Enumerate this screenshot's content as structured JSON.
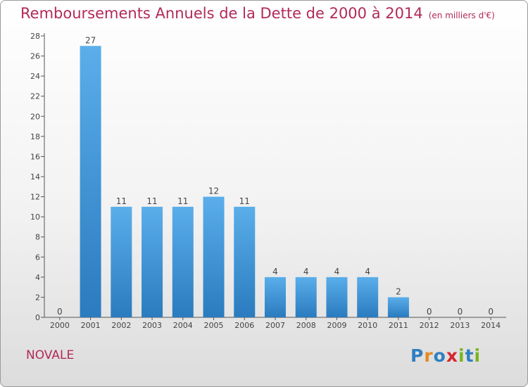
{
  "title": "Remboursements Annuels de la Dette de 2000 à 2014",
  "subtitle": "(en milliers d'€)",
  "commune": "NOVALE",
  "logo": {
    "letters": [
      "P",
      "r",
      "o",
      "x",
      "i",
      "t",
      "i"
    ],
    "colors": [
      "#2f7fc1",
      "#e58a1f",
      "#2f7fc1",
      "#d8262e",
      "#7ab51d",
      "#2f7fc1",
      "#7ab51d"
    ]
  },
  "colors": {
    "title": "#b2295a",
    "bar_light": "#5aaeea",
    "bar_dark": "#2a7bbf",
    "axis": "#555555"
  },
  "chart_data": {
    "type": "bar",
    "title": "Remboursements Annuels de la Dette de 2000 à 2014",
    "subtitle": "(en milliers d'€)",
    "categories": [
      "2000",
      "2001",
      "2002",
      "2003",
      "2004",
      "2005",
      "2006",
      "2007",
      "2008",
      "2009",
      "2010",
      "2011",
      "2012",
      "2013",
      "2014"
    ],
    "values": [
      0,
      27,
      11,
      11,
      11,
      12,
      11,
      4,
      4,
      4,
      4,
      2,
      0,
      0,
      0
    ],
    "ylim": [
      0,
      28
    ],
    "yticks": [
      0,
      2,
      4,
      6,
      8,
      10,
      12,
      14,
      16,
      18,
      20,
      22,
      24,
      26,
      28
    ],
    "grid": false,
    "data_labels": true
  }
}
